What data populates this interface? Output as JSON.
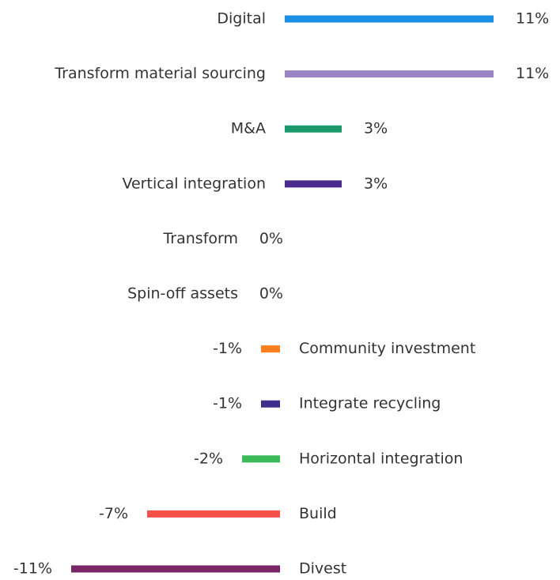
{
  "chart_data": {
    "type": "bar",
    "orientation": "horizontal",
    "categories": [
      "Digital",
      "Transform material sourcing",
      "M&A",
      "Vertical integration",
      "Transform",
      "Spin-off assets",
      "Community investment",
      "Integrate recycling",
      "Horizontal integration",
      "Build",
      "Divest"
    ],
    "values": [
      11,
      11,
      3,
      3,
      0,
      0,
      -1,
      -1,
      -2,
      -7,
      -11
    ],
    "value_labels": [
      "11%",
      "11%",
      "3%",
      "3%",
      "0%",
      "0%",
      "-1%",
      "-1%",
      "-2%",
      "-7%",
      "-11%"
    ],
    "colors": [
      "#1a8fe3",
      "#9b84c4",
      "#1a9a6c",
      "#4a2a8c",
      "#999999",
      "#999999",
      "#ff7f1e",
      "#3d2f8a",
      "#3cba5a",
      "#f5504a",
      "#7a2463"
    ]
  }
}
